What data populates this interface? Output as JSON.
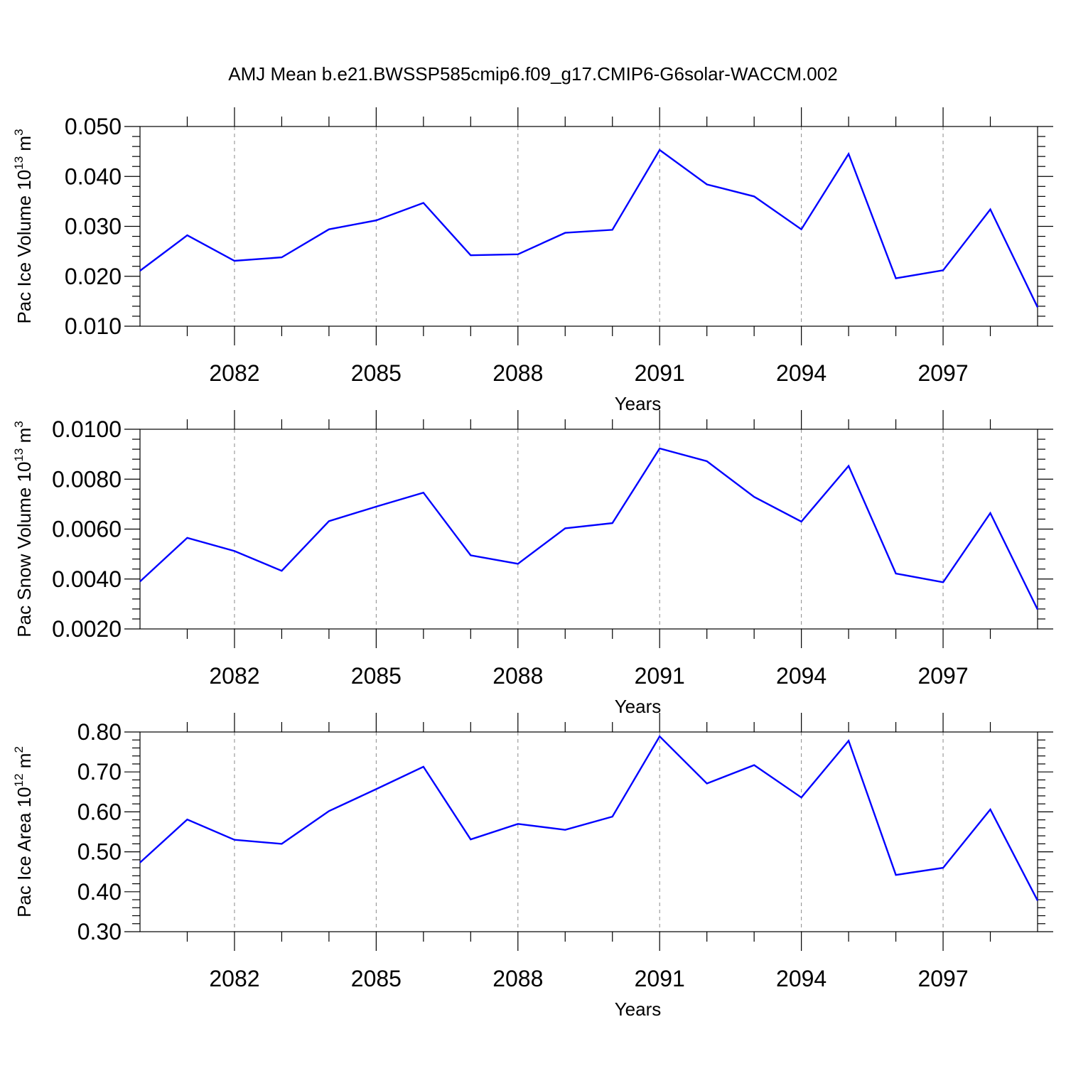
{
  "title": "AMJ Mean b.e21.BWSSP585cmip6.f09_g17.CMIP6-G6solar-WACCM.002",
  "colors": {
    "line": "#0000ff",
    "axis": "#000000",
    "grid": "#8a8a8a"
  },
  "chart_data": [
    {
      "type": "line",
      "xlabel": "Years",
      "ylabel": {
        "text": "Pac Ice Volume 10",
        "sup": "13",
        "tail": " m",
        "sup2": "3"
      },
      "xlim": [
        2080,
        2099
      ],
      "ylim": [
        0.01,
        0.05
      ],
      "xticks": [
        2082,
        2085,
        2088,
        2091,
        2094,
        2097
      ],
      "yticks": [
        "0.010",
        "0.020",
        "0.030",
        "0.040",
        "0.050"
      ],
      "grid": "vertical dashed at major x ticks",
      "x": [
        2080,
        2081,
        2082,
        2083,
        2084,
        2085,
        2086,
        2087,
        2088,
        2089,
        2090,
        2091,
        2092,
        2093,
        2094,
        2095,
        2096,
        2097,
        2098,
        2099
      ],
      "series": [
        {
          "values": [
            0.0211,
            0.0282,
            0.0231,
            0.0238,
            0.0294,
            0.0312,
            0.0347,
            0.0242,
            0.0244,
            0.0287,
            0.0293,
            0.0453,
            0.0384,
            0.036,
            0.0294,
            0.0445,
            0.0196,
            0.0212,
            0.0334,
            0.0138
          ]
        }
      ]
    },
    {
      "type": "line",
      "xlabel": "Years",
      "ylabel": {
        "text": "Pac Snow Volume 10",
        "sup": "13",
        "tail": " m",
        "sup2": "3"
      },
      "xlim": [
        2080,
        2099
      ],
      "ylim": [
        0.002,
        0.01
      ],
      "xticks": [
        2082,
        2085,
        2088,
        2091,
        2094,
        2097
      ],
      "yticks": [
        "0.0020",
        "0.0040",
        "0.0060",
        "0.0080",
        "0.0100"
      ],
      "grid": "vertical dashed at major x ticks",
      "x": [
        2080,
        2081,
        2082,
        2083,
        2084,
        2085,
        2086,
        2087,
        2088,
        2089,
        2090,
        2091,
        2092,
        2093,
        2094,
        2095,
        2096,
        2097,
        2098,
        2099
      ],
      "series": [
        {
          "values": [
            0.0039,
            0.00565,
            0.00512,
            0.00433,
            0.00632,
            0.0069,
            0.00746,
            0.00495,
            0.00461,
            0.00603,
            0.00624,
            0.00923,
            0.00872,
            0.00729,
            0.0063,
            0.00853,
            0.00422,
            0.00387,
            0.00664,
            0.00278
          ]
        }
      ]
    },
    {
      "type": "line",
      "xlabel": "Years",
      "ylabel": {
        "text": "Pac Ice Area 10",
        "sup": "12",
        "tail": " m",
        "sup2": "2"
      },
      "xlim": [
        2080,
        2099
      ],
      "ylim": [
        0.3,
        0.8
      ],
      "xticks": [
        2082,
        2085,
        2088,
        2091,
        2094,
        2097
      ],
      "yticks": [
        "0.30",
        "0.40",
        "0.50",
        "0.60",
        "0.70",
        "0.80"
      ],
      "grid": "vertical dashed at major x ticks",
      "x": [
        2080,
        2081,
        2082,
        2083,
        2084,
        2085,
        2086,
        2087,
        2088,
        2089,
        2090,
        2091,
        2092,
        2093,
        2094,
        2095,
        2096,
        2097,
        2098,
        2099
      ],
      "series": [
        {
          "values": [
            0.473,
            0.581,
            0.53,
            0.52,
            0.602,
            0.657,
            0.713,
            0.531,
            0.57,
            0.555,
            0.588,
            0.789,
            0.671,
            0.717,
            0.636,
            0.778,
            0.442,
            0.46,
            0.606,
            0.378
          ]
        }
      ]
    }
  ]
}
